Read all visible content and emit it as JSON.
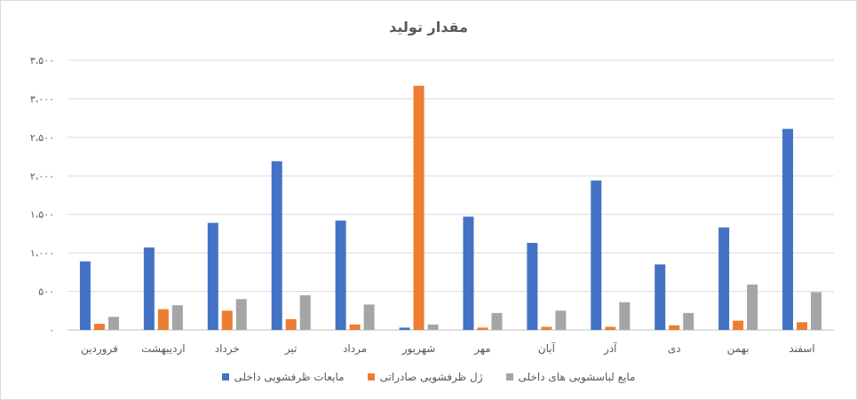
{
  "chart_data": {
    "type": "bar",
    "title": "مقدار تولید",
    "categories": [
      "فروردین",
      "اردیبهشت",
      "خرداد",
      "تیر",
      "مرداد",
      "شهریور",
      "مهر",
      "آبان",
      "آذر",
      "دی",
      "بهمن",
      "اسفند"
    ],
    "series": [
      {
        "name": "مایعات ظرفشویی داخلی",
        "color": "#4472c4",
        "values": [
          890,
          1070,
          1390,
          2190,
          1420,
          30,
          1470,
          1130,
          1940,
          850,
          1330,
          2610
        ]
      },
      {
        "name": "ژل ظرفشویی صادراتی",
        "color": "#ed7d31",
        "values": [
          80,
          270,
          250,
          140,
          70,
          3170,
          30,
          40,
          40,
          60,
          120,
          100
        ]
      },
      {
        "name": "مایع لباسشویی های داخلی",
        "color": "#a5a5a5",
        "values": [
          170,
          320,
          400,
          450,
          330,
          70,
          220,
          250,
          360,
          220,
          590,
          490
        ]
      }
    ],
    "ylim": [
      0,
      3500
    ],
    "yticks": [
      0,
      500,
      1000,
      1500,
      2000,
      2500,
      3000,
      3500
    ],
    "ytick_labels": [
      "۰",
      "۵۰۰",
      "۱،۰۰۰",
      "۱،۵۰۰",
      "۲،۰۰۰",
      "۲،۵۰۰",
      "۳،۰۰۰",
      "۳،۵۰۰"
    ],
    "grid": true,
    "legend_position": "bottom"
  }
}
